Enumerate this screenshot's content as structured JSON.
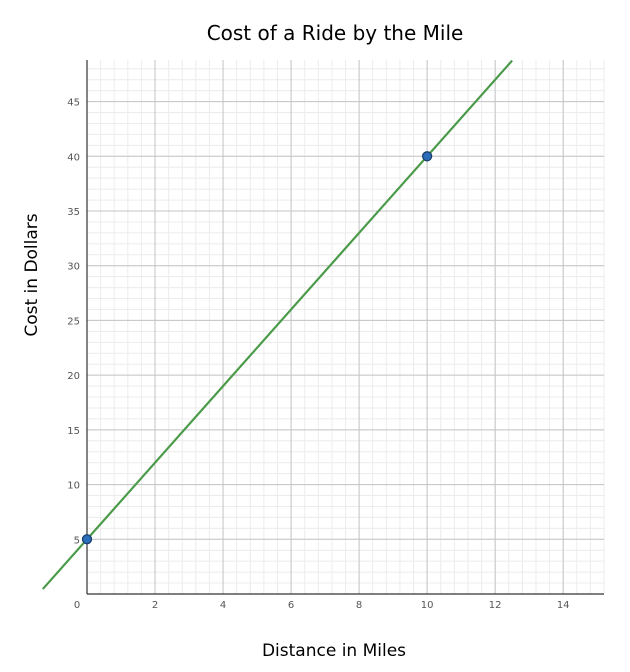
{
  "chart_data": {
    "type": "line",
    "title": "Cost of a Ride by the Mile",
    "xlabel": "Distance in Miles",
    "ylabel": "Cost in Dollars",
    "xlim": [
      0,
      15.2
    ],
    "ylim": [
      0,
      48.8
    ],
    "x_ticks": [
      0,
      2,
      4,
      6,
      8,
      10,
      12,
      14
    ],
    "y_ticks": [
      5,
      10,
      15,
      20,
      25,
      30,
      35,
      40,
      45
    ],
    "major_x_step": 2,
    "major_y_step": 5,
    "minor_x_step": 0.4,
    "minor_y_step": 1,
    "grid": true,
    "line": {
      "slope": 3.5,
      "intercept": 5,
      "x_range": [
        -1.3,
        12.5
      ],
      "color": "#4a9a4a"
    },
    "points": [
      {
        "x": 0,
        "y": 5
      },
      {
        "x": 10,
        "y": 40
      }
    ],
    "point_color": "#2a6db8"
  }
}
